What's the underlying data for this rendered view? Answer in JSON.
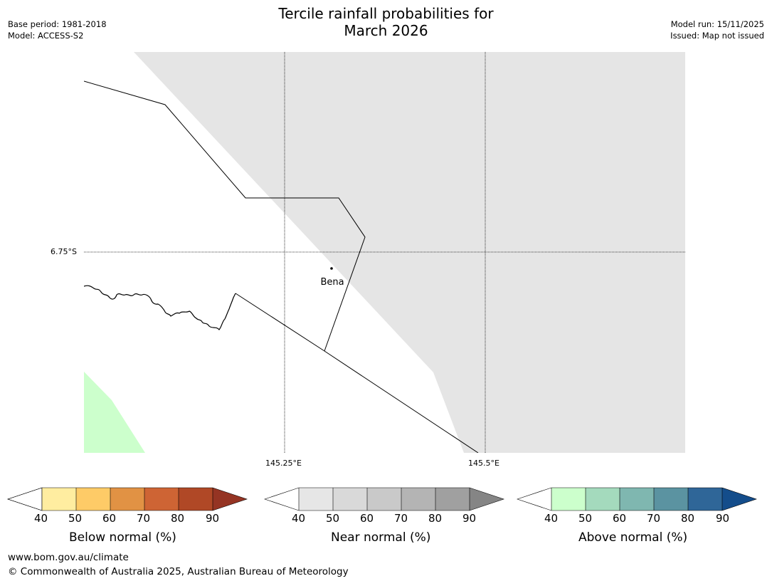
{
  "header": {
    "base_period": "Base period: 1981-2018",
    "model": "Model: ACCESS-S2",
    "title_line1": "Tercile rainfall probabilities for",
    "title_line2": "March 2026",
    "model_run": "Model run: 15/11/2025",
    "issued": "Issued: Map not issued"
  },
  "map": {
    "lat_labels": [
      "6.75°S"
    ],
    "lon_labels": [
      "145.25°E",
      "145.5°E"
    ],
    "place": "Bena",
    "colors": {
      "near_normal_shade": "#e5e5e5",
      "above_normal_shade": "#ccffcc",
      "outline": "#000000"
    }
  },
  "legends": [
    {
      "title": "Below normal (%)",
      "ticks": [
        "40",
        "50",
        "60",
        "70",
        "80",
        "90"
      ],
      "colors": [
        "#ffffff",
        "#ffeda0",
        "#fecb67",
        "#e19244",
        "#ce6434",
        "#b04826",
        "#953423"
      ]
    },
    {
      "title": "Near normal (%)",
      "ticks": [
        "40",
        "50",
        "60",
        "70",
        "80",
        "90"
      ],
      "colors": [
        "#ffffff",
        "#e6e6e6",
        "#d9d9d9",
        "#c9c9c9",
        "#b4b4b4",
        "#a0a0a0",
        "#858585"
      ]
    },
    {
      "title": "Above normal (%)",
      "ticks": [
        "40",
        "50",
        "60",
        "70",
        "80",
        "90"
      ],
      "colors": [
        "#ffffff",
        "#ccffcc",
        "#a4dabd",
        "#7fb7b0",
        "#5b93a1",
        "#2f6698",
        "#144d8b"
      ]
    }
  ],
  "footer": {
    "website": "www.bom.gov.au/climate",
    "copyright": "© Commonwealth of Australia 2025, Australian Bureau of Meteorology"
  }
}
